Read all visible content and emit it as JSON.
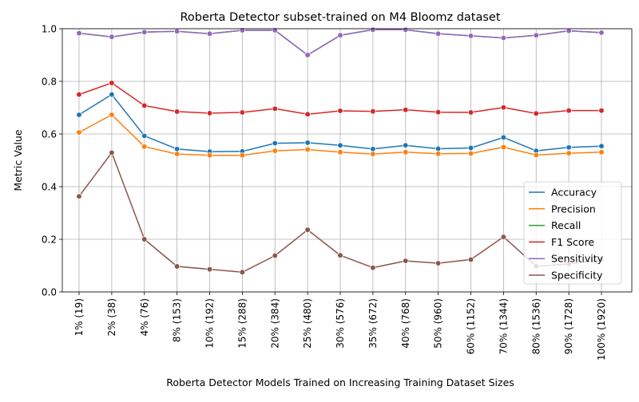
{
  "chart_data": {
    "type": "line",
    "title": "Roberta Detector subset-trained on M4 Bloomz dataset",
    "xlabel": "Roberta Detector Models Trained on Increasing Training Dataset Sizes",
    "ylabel": "Metric Value",
    "ylim": [
      0.0,
      1.0
    ],
    "yticks": [
      "0.0",
      "0.2",
      "0.4",
      "0.6",
      "0.8",
      "1.0"
    ],
    "grid": true,
    "legend_position": "lower right",
    "categories": [
      "1% (19)",
      "2% (38)",
      "4% (76)",
      "8% (153)",
      "10% (192)",
      "15% (288)",
      "20% (384)",
      "25% (480)",
      "30% (576)",
      "35% (672)",
      "40% (768)",
      "50% (960)",
      "60% (1152)",
      "70% (1344)",
      "80% (1536)",
      "90% (1728)",
      "100% (1920)"
    ],
    "series": [
      {
        "name": "Accuracy",
        "color": "#1f77b4",
        "values": [
          0.673,
          0.75,
          0.593,
          0.543,
          0.533,
          0.534,
          0.565,
          0.567,
          0.557,
          0.543,
          0.557,
          0.544,
          0.547,
          0.587,
          0.536,
          0.549,
          0.554
        ]
      },
      {
        "name": "Precision",
        "color": "#ff7f0e",
        "values": [
          0.606,
          0.673,
          0.552,
          0.524,
          0.519,
          0.519,
          0.536,
          0.541,
          0.531,
          0.524,
          0.531,
          0.525,
          0.526,
          0.55,
          0.52,
          0.527,
          0.531
        ]
      },
      {
        "name": "Recall",
        "color": "#2ca02c",
        "values": [
          0.983,
          0.969,
          0.987,
          0.99,
          0.981,
          0.994,
          0.994,
          0.9,
          0.975,
          0.996,
          0.996,
          0.981,
          0.973,
          0.965,
          0.975,
          0.992,
          0.985
        ]
      },
      {
        "name": "F1 Score",
        "color": "#d62728",
        "values": [
          0.75,
          0.794,
          0.708,
          0.685,
          0.679,
          0.682,
          0.696,
          0.675,
          0.688,
          0.686,
          0.692,
          0.683,
          0.682,
          0.701,
          0.678,
          0.689,
          0.689
        ]
      },
      {
        "name": "Sensitivity",
        "color": "#9467bd",
        "values": [
          0.983,
          0.969,
          0.987,
          0.99,
          0.981,
          0.994,
          0.994,
          0.9,
          0.975,
          0.996,
          0.996,
          0.981,
          0.973,
          0.965,
          0.975,
          0.992,
          0.985
        ]
      },
      {
        "name": "Specificity",
        "color": "#8c564b",
        "values": [
          0.363,
          0.529,
          0.2,
          0.097,
          0.086,
          0.075,
          0.138,
          0.236,
          0.139,
          0.092,
          0.118,
          0.109,
          0.123,
          0.209,
          0.098,
          0.106,
          0.122
        ]
      }
    ]
  }
}
